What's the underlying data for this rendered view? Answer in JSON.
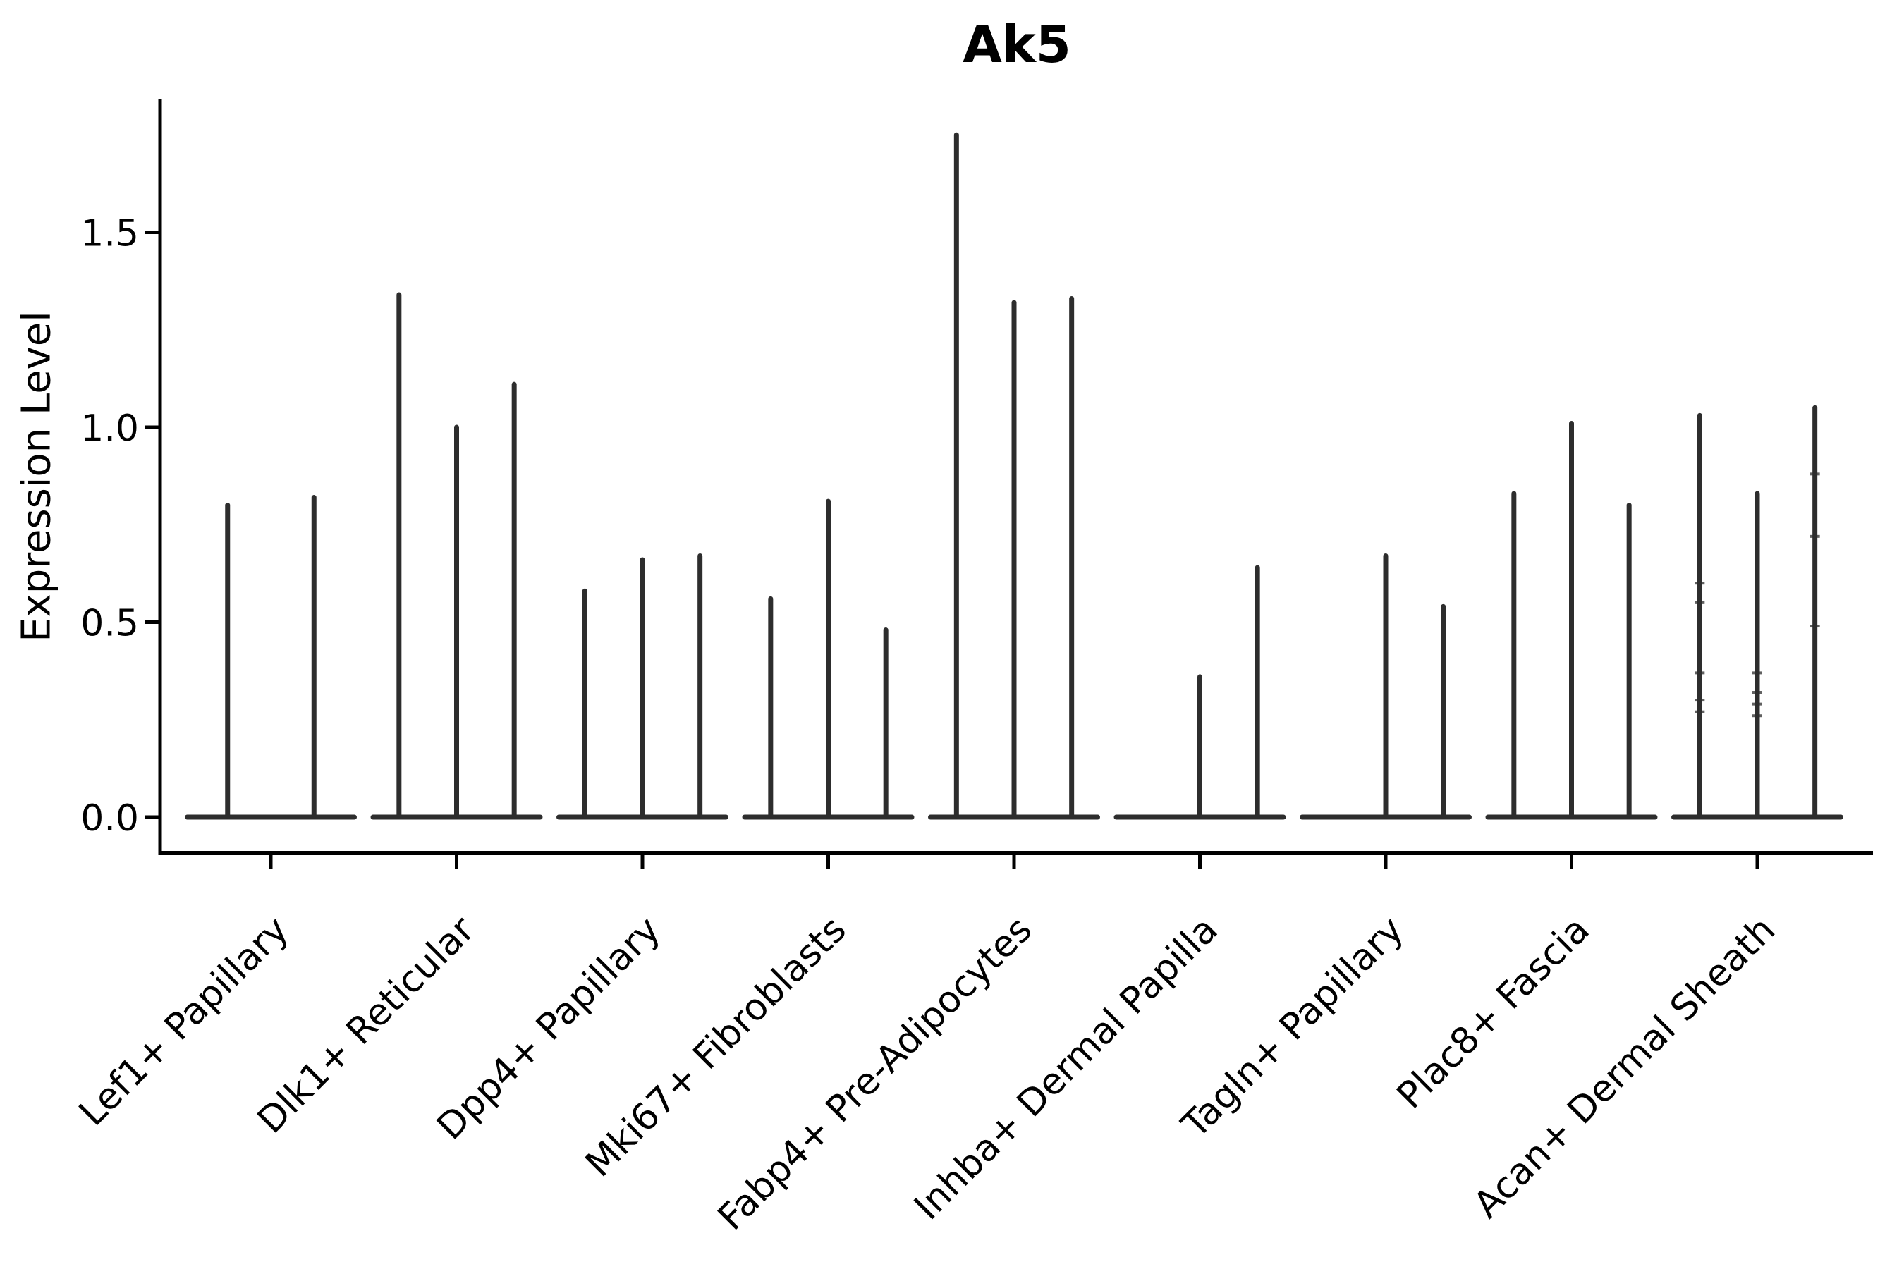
{
  "figure": {
    "title": "Ak5",
    "ylabel": "Expression Level"
  },
  "chart_data": {
    "type": "violin",
    "title": "Ak5",
    "xlabel": "",
    "ylabel": "Expression Level",
    "ylim": [
      -0.09,
      1.84
    ],
    "grid": false,
    "legend": "none",
    "x_tick_rotation": 45,
    "violin_color": "#2d2d2d",
    "axis_color": "#000000",
    "yticks": [
      {
        "value": 0.0,
        "label": "0.0"
      },
      {
        "value": 0.5,
        "label": "0.5"
      },
      {
        "value": 1.0,
        "label": "1.0"
      },
      {
        "value": 1.5,
        "label": "1.5"
      }
    ],
    "categories": [
      "Lef1+ Papillary",
      "Dlk1+ Reticular",
      "Dpp4+ Papillary",
      "Mki67+ Fibroblasts",
      "Fabp4+ Pre-Adipocytes",
      "Inhba+ Dermal Papilla",
      "Tagln+ Papillary",
      "Plac8+ Fascia",
      "Acan+ Dermal Sheath"
    ],
    "groups": [
      {
        "category": "Lef1+ Papillary",
        "violins": [
          {
            "peak": 0.8
          },
          {
            "peak": 0.82
          }
        ]
      },
      {
        "category": "Dlk1+ Reticular",
        "violins": [
          {
            "peak": 1.34
          },
          {
            "peak": 1.0
          },
          {
            "peak": 1.11
          }
        ]
      },
      {
        "category": "Dpp4+ Papillary",
        "violins": [
          {
            "peak": 0.58
          },
          {
            "peak": 0.66
          },
          {
            "peak": 0.67
          }
        ]
      },
      {
        "category": "Mki67+ Fibroblasts",
        "violins": [
          {
            "peak": 0.56
          },
          {
            "peak": 0.81
          },
          {
            "peak": 0.48
          }
        ]
      },
      {
        "category": "Fabp4+ Pre-Adipocytes",
        "violins": [
          {
            "peak": 1.75
          },
          {
            "peak": 1.32
          },
          {
            "peak": 1.33
          }
        ]
      },
      {
        "category": "Inhba+ Dermal Papilla",
        "violins": [
          {
            "peak": 0.0
          },
          {
            "peak": 0.36
          },
          {
            "peak": 0.64
          }
        ]
      },
      {
        "category": "Tagln+ Papillary",
        "violins": [
          {
            "peak": 0.0
          },
          {
            "peak": 0.67
          },
          {
            "peak": 0.54
          }
        ]
      },
      {
        "category": "Plac8+ Fascia",
        "violins": [
          {
            "peak": 0.83
          },
          {
            "peak": 1.01
          },
          {
            "peak": 0.8
          }
        ]
      },
      {
        "category": "Acan+ Dermal Sheath",
        "violins": [
          {
            "peak": 1.03,
            "marks": [
              0.6,
              0.55,
              0.37,
              0.3,
              0.27
            ]
          },
          {
            "peak": 0.83,
            "marks": [
              0.37,
              0.32,
              0.29,
              0.26
            ]
          },
          {
            "peak": 1.05,
            "marks": [
              0.88,
              0.72,
              0.49
            ]
          }
        ]
      }
    ]
  }
}
